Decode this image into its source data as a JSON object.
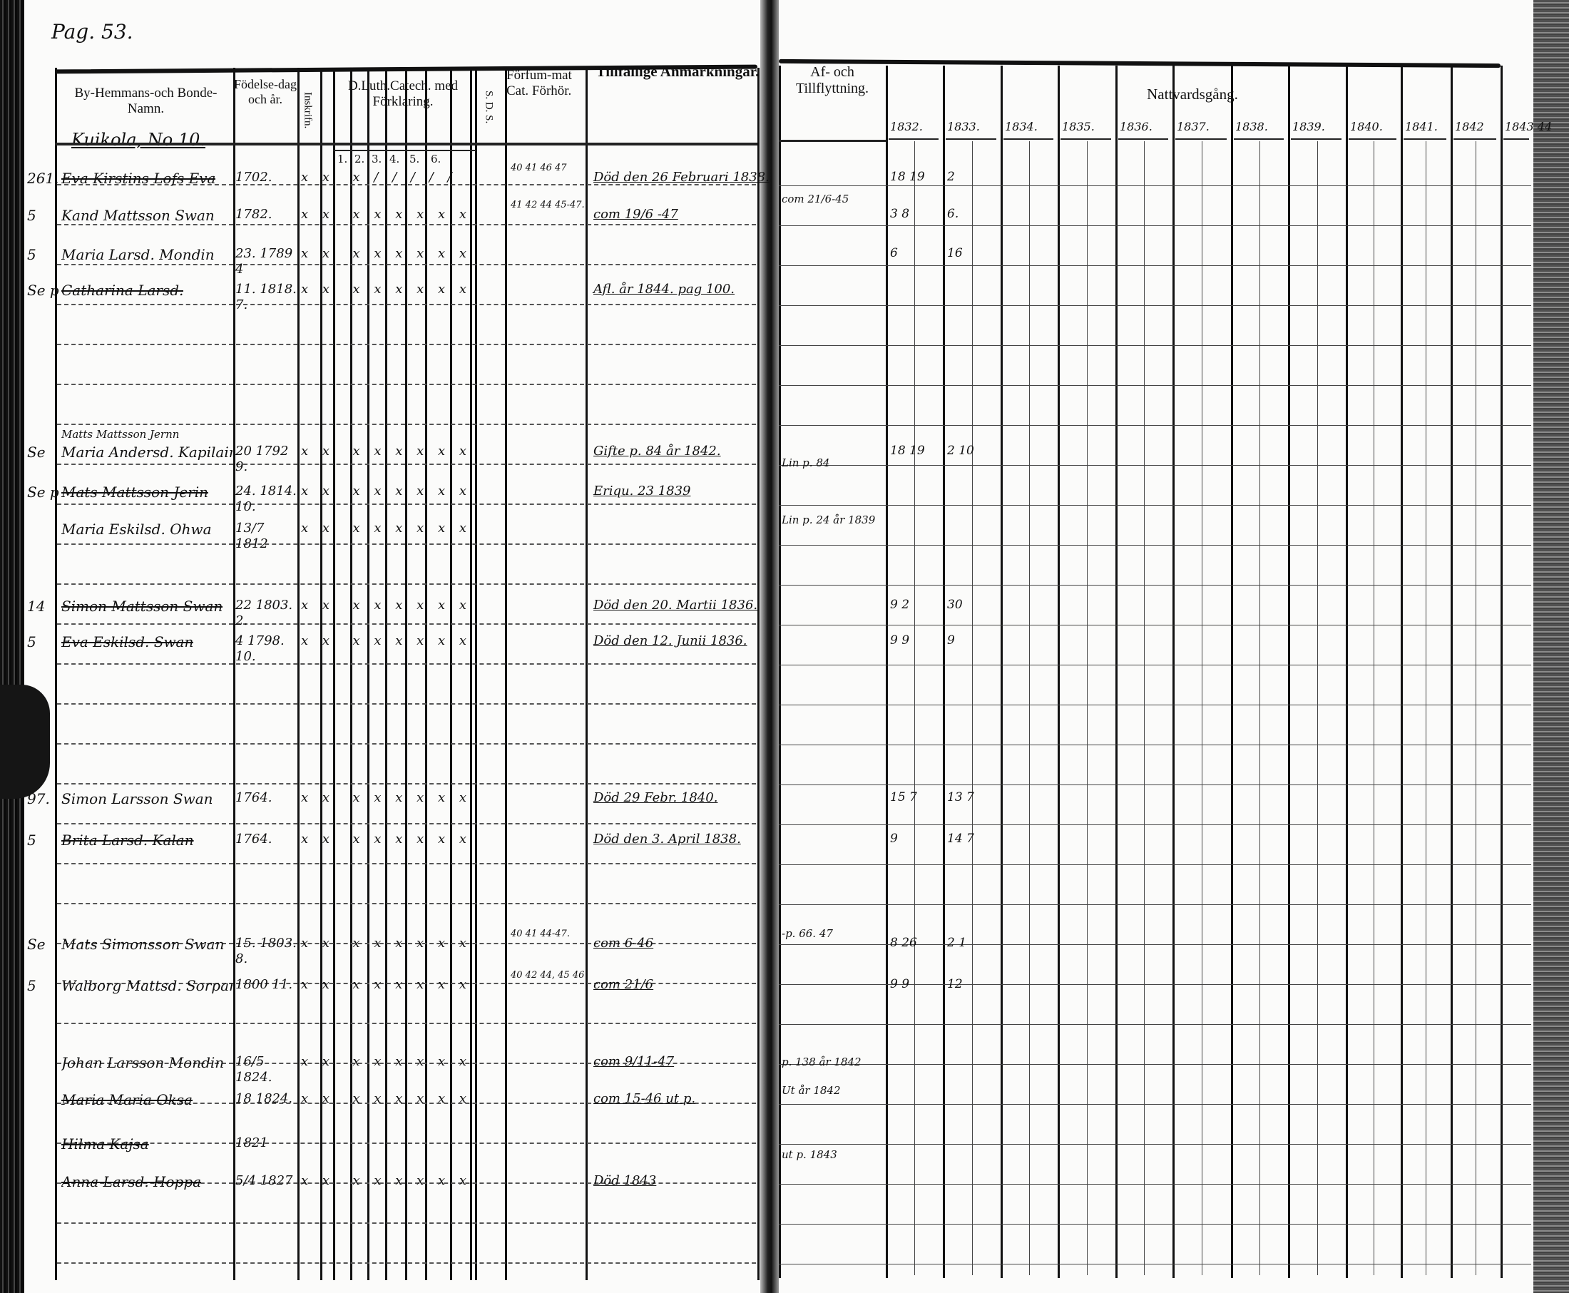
{
  "page": {
    "page_number": "Pag. 53.",
    "farm_label": "Kuikola, No 10."
  },
  "headers": {
    "name": "By-Hemmans-och Bonde-Namn.",
    "birth": "Födelse-dag och år.",
    "inskrivning": "Inskrifn.",
    "catechism": "D.Luth.Catech. med Förklaring.",
    "catechism_cols": [
      "1.",
      "2.",
      "3.",
      "4.",
      "5.",
      "6."
    ],
    "sds": "S. D. S.",
    "forfum": "Förfum-mat Cat. Förhör.",
    "remarks": "Tillfällige Anmärkningar.",
    "moving": "Af- och Tillflyttning.",
    "communion": "Nattvardsgång.",
    "years": [
      "1832.",
      "1833.",
      "1834.",
      "1835.",
      "1836.",
      "1837.",
      "1838.",
      "1839.",
      "1840.",
      "1841.",
      "1842",
      "1843 44"
    ]
  },
  "entries": [
    {
      "margin": "261.",
      "name": "Eva Kirstins Lofs Eva",
      "crossed": true,
      "birth": "1702.",
      "marks": "x x  x / / / / /",
      "forfum": "40 41 46 47",
      "remark": "Död den 26 Februari 1838.",
      "communion": [
        "18 19",
        "2"
      ]
    },
    {
      "margin": "5",
      "name": "Kand Mattsson Swan",
      "crossed": false,
      "birth": "1782.",
      "marks": "x x  x x x x x x",
      "forfum": "41 42 44 45-47.",
      "remark": "com 19/6 -47",
      "communion": [
        "3 8",
        "6."
      ]
    },
    {
      "margin": "5",
      "name": "Maria Larsd. Mondin",
      "crossed": false,
      "birth": "23. 1789 4",
      "marks": "x x  x x x x x x",
      "forfum": "",
      "remark": "",
      "communion": [
        "6",
        "16"
      ]
    },
    {
      "margin": "Se p",
      "name": "Catharina Larsd.",
      "crossed": true,
      "birth": "11. 1818. 7.",
      "marks": "x x  x x x x x x",
      "forfum": "",
      "remark": "Afl. år 1844. pag 100.",
      "communion": [
        "",
        ""
      ]
    },
    {
      "margin": "",
      "name": "Matts Mattsson Jernn",
      "crossed": false,
      "birth": "",
      "marks": "",
      "forfum": "",
      "remark": "",
      "communion": [
        "",
        ""
      ]
    },
    {
      "margin": "Se",
      "name": "Maria Andersd. Kapilain",
      "crossed": false,
      "birth": "20 1792 9.",
      "marks": "x x  x x x x x x",
      "forfum": "",
      "remark": "Gifte p. 84 år 1842.",
      "communion": [
        "18 19",
        "2 10"
      ]
    },
    {
      "margin": "Se p",
      "name": "Mats Mattsson Jerin",
      "crossed": true,
      "birth": "24. 1814. 10.",
      "marks": "x x  x x x x x x",
      "forfum": "",
      "remark": "Eriqu. 23 1839",
      "communion": [
        "",
        ""
      ]
    },
    {
      "margin": "",
      "name": "Maria Eskilsd. Ohwa",
      "crossed": false,
      "birth": "13/7 1812",
      "marks": "x x  x x x x x x",
      "forfum": "",
      "remark": "",
      "communion": [
        "",
        ""
      ]
    },
    {
      "margin": "14",
      "name": "Simon Mattsson Swan",
      "crossed": true,
      "birth": "22 1803. 2.",
      "marks": "x x  x x x x x x",
      "forfum": "",
      "remark": "Död den 20. Martii 1836.",
      "communion": [
        "9 2",
        "30"
      ]
    },
    {
      "margin": "5",
      "name": "Eva Eskilsd. Swan",
      "crossed": true,
      "birth": "4 1798. 10.",
      "marks": "x x  x x x x x x",
      "forfum": "",
      "remark": "Död den 12. Junii 1836.",
      "communion": [
        "9 9",
        "9"
      ]
    },
    {
      "margin": "97.",
      "name": "Simon Larsson Swan",
      "crossed": false,
      "birth": "1764.",
      "marks": "x x  x x x x x x",
      "forfum": "",
      "remark": "Död 29 Febr. 1840.",
      "communion": [
        "15 7",
        "13 7"
      ]
    },
    {
      "margin": "5",
      "name": "Brita Larsd. Kalan",
      "crossed": true,
      "birth": "1764.",
      "marks": "x x  x x x x x x",
      "forfum": "",
      "remark": "Död den 3. April 1838.",
      "communion": [
        "9",
        "14 7"
      ]
    },
    {
      "margin": "Se",
      "name": "Mats Simonsson Swan",
      "crossed": false,
      "birth": "15. 1803. 8.",
      "marks": "x x  x x x x x x",
      "forfum": "40 41 44-47.",
      "remark": "com 6-46",
      "communion": [
        "8 26",
        "2 1"
      ]
    },
    {
      "margin": "5",
      "name": "Walborg Mattsd. Sorpar",
      "crossed": false,
      "birth": "1800 11.",
      "marks": "x x  x x x x x x",
      "forfum": "40 42 44, 45 46",
      "remark": "com 21/6",
      "communion": [
        "9 9",
        "12"
      ]
    },
    {
      "margin": "",
      "name": "Johan Larsson Mondin",
      "crossed": false,
      "birth": "16/5 1824.",
      "marks": "x x  x x x x x x",
      "forfum": "",
      "remark": "com 9/11-47",
      "communion": [
        "",
        ""
      ]
    },
    {
      "margin": "",
      "name": "Maria Maria Oksa",
      "crossed": true,
      "birth": "18 1824.",
      "marks": "x x  x x x x x x",
      "forfum": "",
      "remark": "com 15-46 ut p.",
      "communion": [
        "",
        ""
      ]
    },
    {
      "margin": "",
      "name": "Hilma Kajsa",
      "crossed": true,
      "birth": "1821",
      "marks": "",
      "forfum": "",
      "remark": "",
      "communion": [
        "",
        ""
      ]
    },
    {
      "margin": "",
      "name": "Anna Larsd. Hoppa",
      "crossed": true,
      "birth": "5/4 1827",
      "marks": "x x  x x x x x x",
      "forfum": "",
      "remark": "Död 1843",
      "communion": [
        "",
        ""
      ]
    }
  ],
  "moving_notes": [
    "com 21/6-45",
    "Lin p. 84",
    "Lin p. 24 år 1839",
    "-p. 66. 47",
    "p. 138 år 1842",
    "Ut år 1842",
    "ut p. 1843"
  ]
}
